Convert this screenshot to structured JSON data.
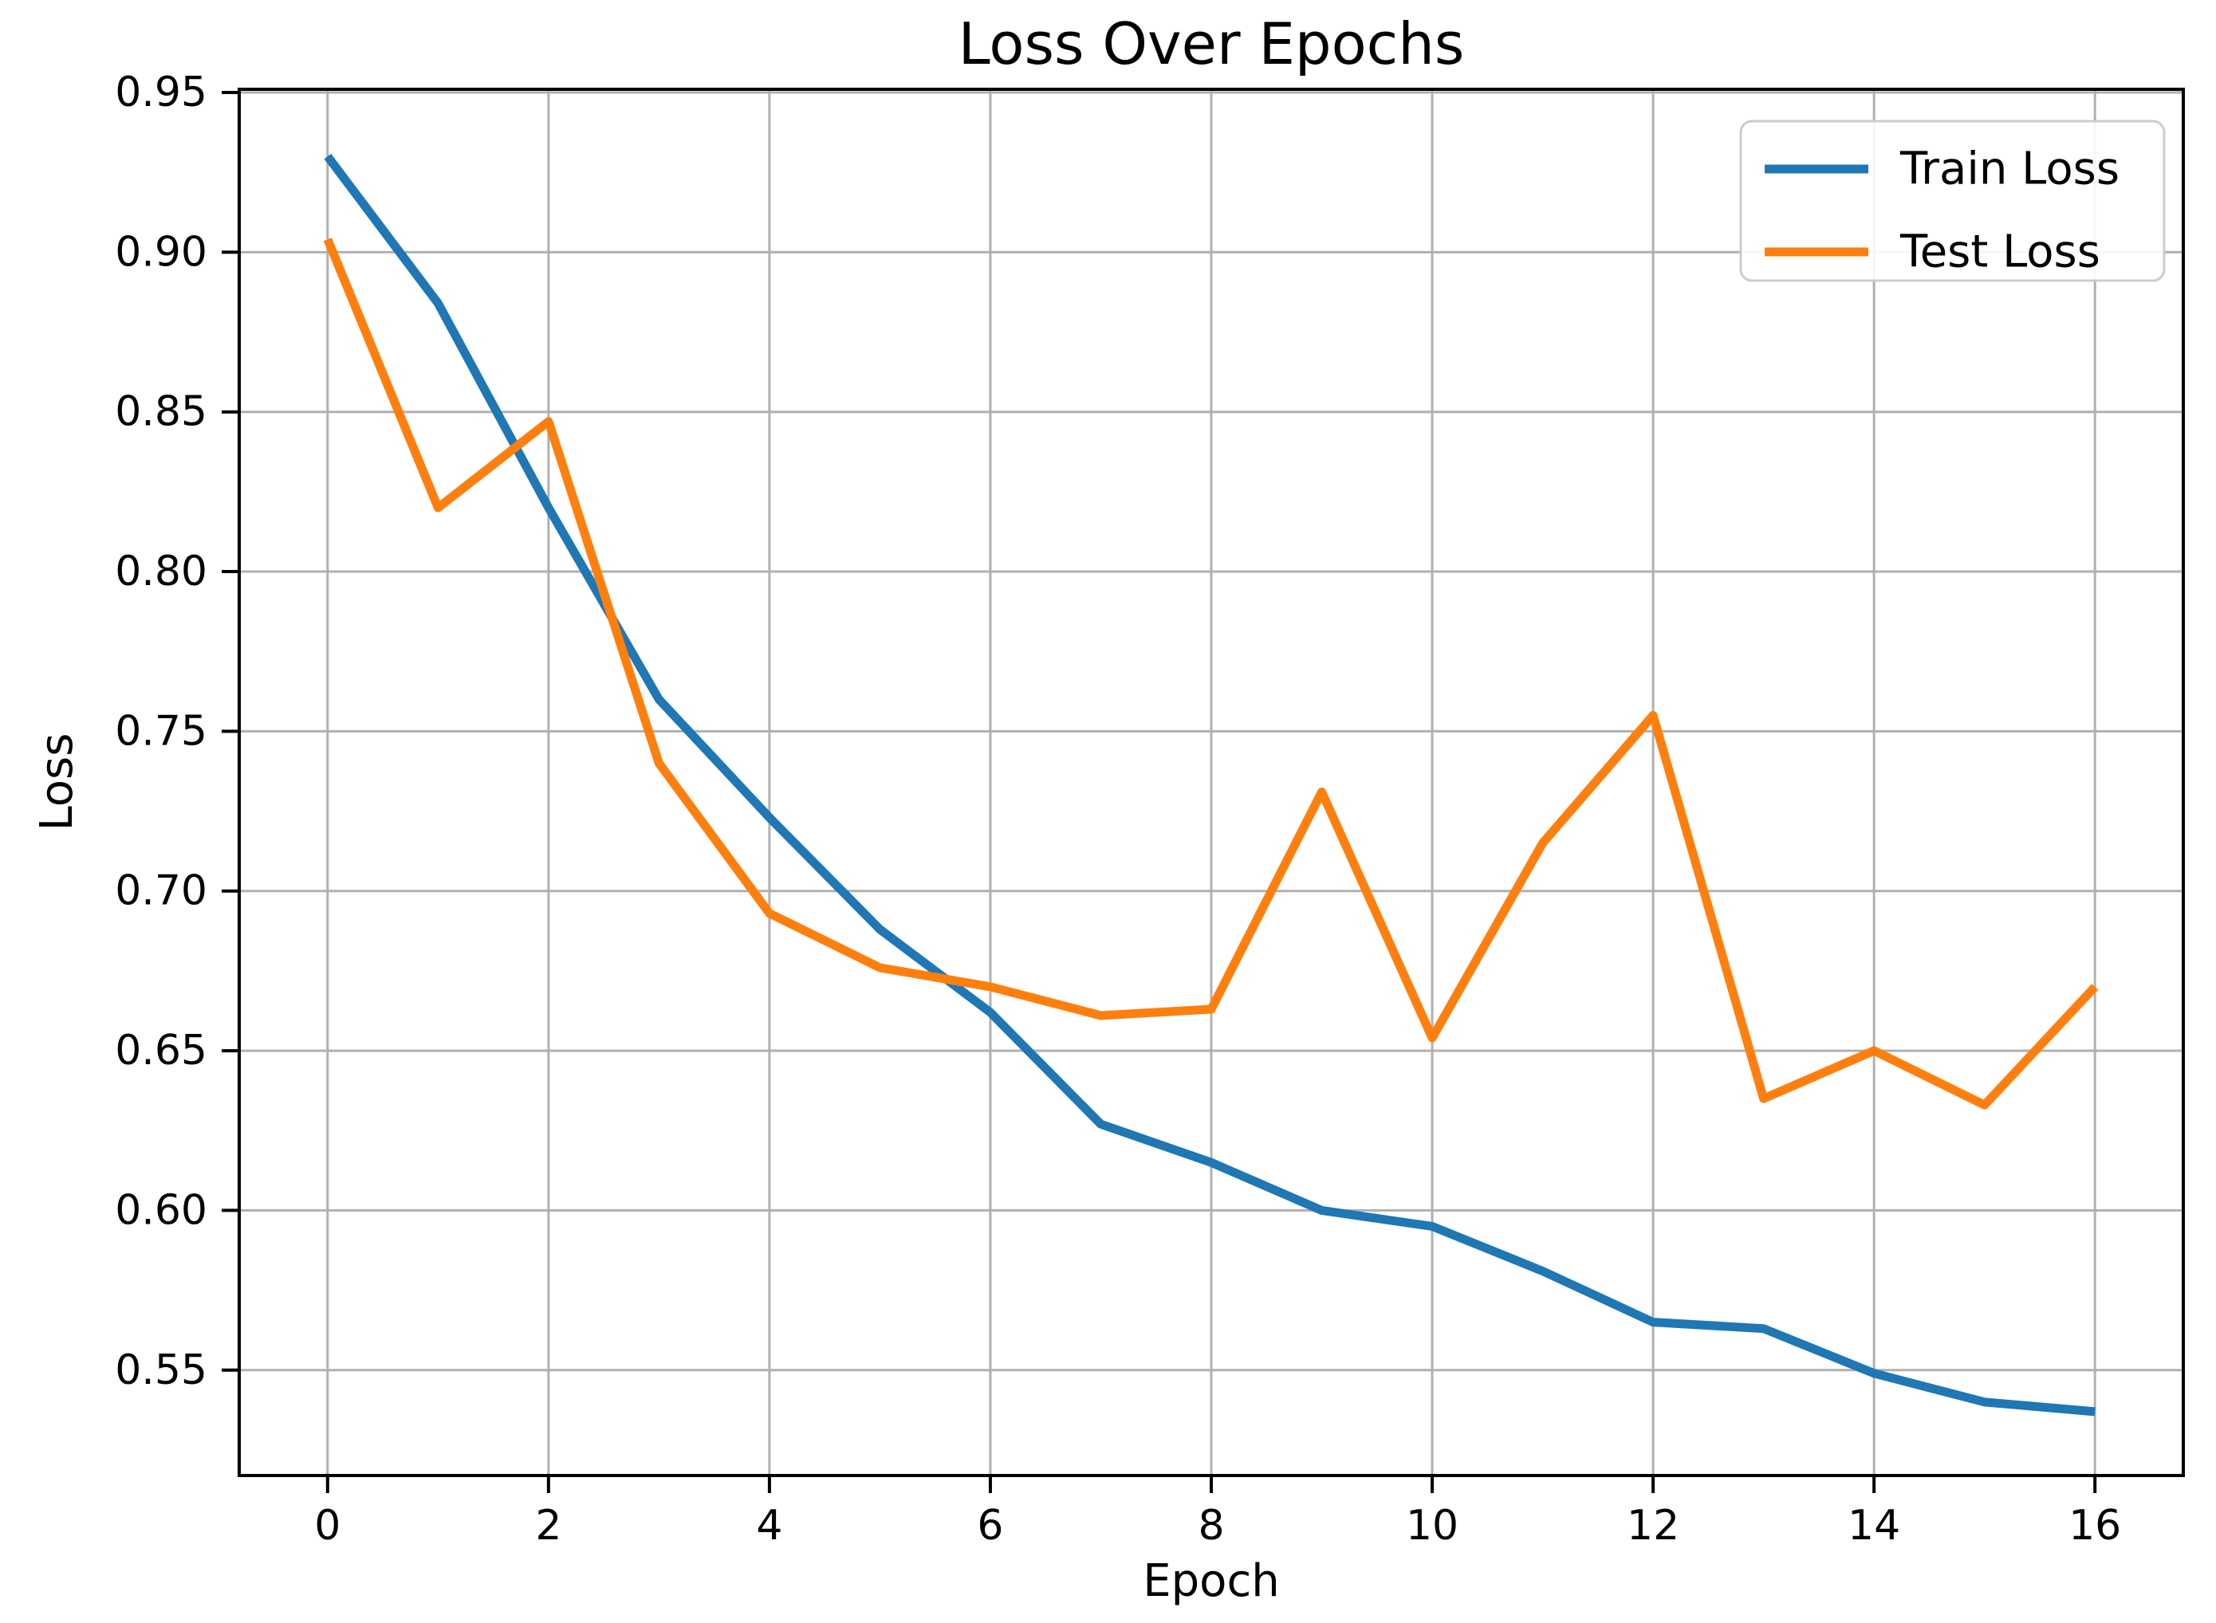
{
  "figure": {
    "background": "#ffffff"
  },
  "chart_data": {
    "type": "line",
    "title": "Loss Over Epochs",
    "xlabel": "Epoch",
    "ylabel": "Loss",
    "x": [
      0,
      1,
      2,
      3,
      4,
      5,
      6,
      7,
      8,
      9,
      10,
      11,
      12,
      13,
      14,
      15,
      16
    ],
    "series": [
      {
        "name": "Train Loss",
        "color": "#1f77b4",
        "values": [
          0.93,
          0.884,
          0.82,
          0.76,
          0.723,
          0.688,
          0.662,
          0.627,
          0.615,
          0.6,
          0.595,
          0.581,
          0.565,
          0.563,
          0.549,
          0.54,
          0.537
        ]
      },
      {
        "name": "Test Loss",
        "color": "#ff7f0e",
        "values": [
          0.904,
          0.82,
          0.847,
          0.74,
          0.693,
          0.676,
          0.67,
          0.661,
          0.663,
          0.731,
          0.654,
          0.715,
          0.755,
          0.635,
          0.65,
          0.633,
          0.67
        ]
      }
    ],
    "xticks": [
      0,
      2,
      4,
      6,
      8,
      10,
      12,
      14,
      16
    ],
    "yticks": [
      0.55,
      0.6,
      0.65,
      0.7,
      0.75,
      0.8,
      0.85,
      0.9,
      0.95
    ],
    "xlim": [
      -0.8,
      16.8
    ],
    "ylim": [
      0.517,
      0.951
    ],
    "grid": true,
    "legend": {
      "position": "upper right"
    },
    "style": {
      "grid_color": "#b0b0b0",
      "spine_color": "#000000",
      "text_color": "#000000",
      "legend_border_color": "#cccccc",
      "legend_background": "#ffffff"
    }
  }
}
